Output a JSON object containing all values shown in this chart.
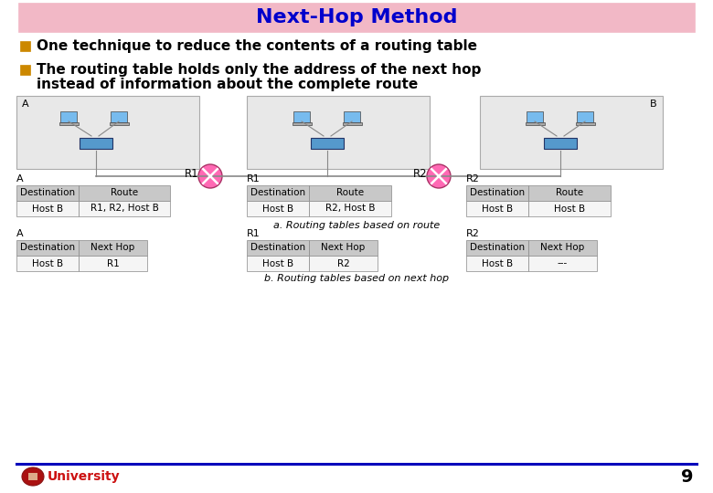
{
  "title": "Next-Hop Method",
  "title_color": "#0000CC",
  "title_bg_color": "#F2B8C6",
  "bullet_color": "#CC8800",
  "text_color": "#000000",
  "bullet1": "One technique to reduce the contents of a routing table",
  "bullet2a": "The routing table holds only the address of the next hop",
  "bullet2b": "instead of information about the complete route",
  "network_bg_color": "#E8E8E8",
  "router_color": "#FF69B4",
  "table_header_bg": "#C8C8C8",
  "table_cell_bg": "#F5F5F5",
  "table_border_color": "#888888",
  "table_a_route": [
    [
      "Destination",
      "Route"
    ],
    [
      "Host B",
      "R1, R2, Host B"
    ]
  ],
  "table_r1_route": [
    [
      "Destination",
      "Route"
    ],
    [
      "Host B",
      "R2, Host B"
    ]
  ],
  "table_r2_route": [
    [
      "Destination",
      "Route"
    ],
    [
      "Host B",
      "Host B"
    ]
  ],
  "table_a_hop": [
    [
      "Destination",
      "Next Hop"
    ],
    [
      "Host B",
      "R1"
    ]
  ],
  "table_r1_hop": [
    [
      "Destination",
      "Next Hop"
    ],
    [
      "Host B",
      "R2"
    ]
  ],
  "table_r2_hop": [
    [
      "Destination",
      "Next Hop"
    ],
    [
      "Host B",
      "---"
    ]
  ],
  "caption_a": "a. Routing tables based on route",
  "caption_b": "b. Routing tables based on next hop",
  "footer_text": "University",
  "footer_line_color": "#0000BB",
  "page_number": "9",
  "bg_color": "#FFFFFF",
  "switch_color": "#5599CC",
  "line_color": "#888888",
  "laptop_screen_color": "#77BBEE",
  "laptop_base_color": "#AAAAAA"
}
